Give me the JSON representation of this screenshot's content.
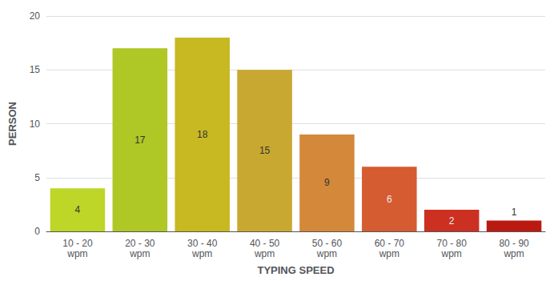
{
  "chart_data": {
    "type": "bar",
    "categories": [
      "10 - 20\nwpm",
      "20 - 30\nwpm",
      "30 - 40\nwpm",
      "40 - 50\nwpm",
      "50 - 60\nwpm",
      "60 - 70\nwpm",
      "70 - 80\nwpm",
      "80 - 90\nwpm"
    ],
    "values": [
      4,
      17,
      18,
      15,
      9,
      6,
      2,
      1
    ],
    "colors": [
      "#bdd628",
      "#afc825",
      "#c8b822",
      "#c8a830",
      "#d4883a",
      "#d45c30",
      "#cc3020",
      "#bb1a10"
    ],
    "xlabel": "TYPING SPEED",
    "ylabel": "PERSON",
    "ylim": [
      0,
      20
    ],
    "yticks": [
      0,
      5,
      10,
      15,
      20
    ],
    "grid": true,
    "data_labels": true
  }
}
